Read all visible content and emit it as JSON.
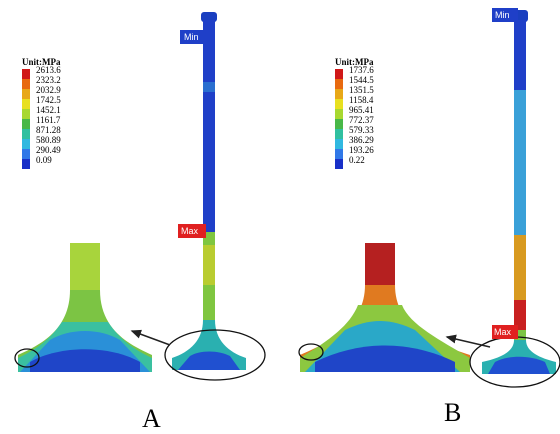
{
  "panels": [
    {
      "label": "A",
      "legend_title": "Unit:MPa",
      "legend_values": [
        "2613.6",
        "2323.2",
        "2032.9",
        "1742.5",
        "1452.1",
        "1161.7",
        "871.28",
        "580.89",
        "290.49",
        "0.09"
      ],
      "min_tag": "Min",
      "max_tag": "Max"
    },
    {
      "label": "B",
      "legend_title": "Unit:MPa",
      "legend_values": [
        "1737.6",
        "1544.5",
        "1351.5",
        "1158.4",
        "965.41",
        "772.37",
        "579.33",
        "386.29",
        "193.26",
        "0.22"
      ],
      "min_tag": "Min",
      "max_tag": "Max"
    }
  ]
}
